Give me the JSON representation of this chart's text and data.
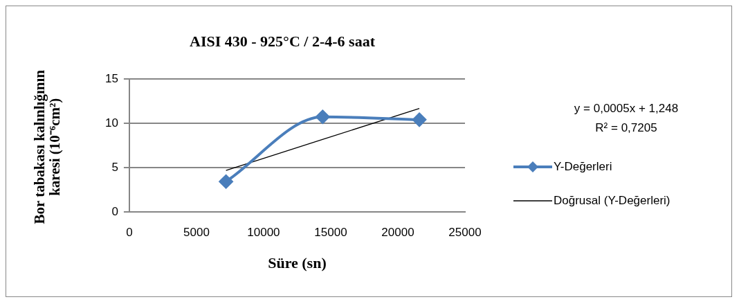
{
  "chart_data": {
    "type": "line",
    "title": "AISI 430 - 925°C / 2-4-6 saat",
    "xlabel": "Süre (sn)",
    "ylabel": "Bor tabakası kalınlığının karesi (10⁻⁶cm²)",
    "x": [
      7200,
      14400,
      21600
    ],
    "series": [
      {
        "name": "Y-Değerleri",
        "color": "#4a7ebb",
        "values": [
          3.44,
          10.75,
          10.43
        ],
        "marker": "diamond"
      },
      {
        "name": "Doğrusal (Y-Değerleri)",
        "type": "line",
        "color": "#000000",
        "x": [
          7200,
          21600
        ],
        "values": [
          4.7,
          11.7
        ],
        "marker": "none"
      }
    ],
    "xlim": [
      0,
      25000
    ],
    "xticks": [
      0,
      5000,
      10000,
      15000,
      20000,
      25000
    ],
    "ylim": [
      0,
      15
    ],
    "yticks": [
      0,
      5,
      10,
      15
    ],
    "grid": "y",
    "legend": "right",
    "annotations": [
      "y = 0,0005x + 1,248",
      "R² = 0,7205"
    ]
  }
}
